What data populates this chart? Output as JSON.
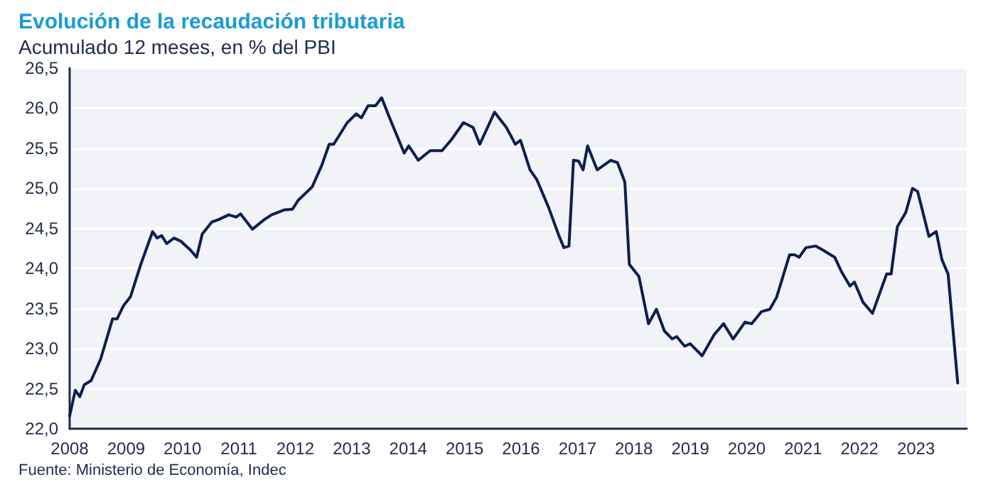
{
  "chart_data": {
    "type": "line",
    "title": "Evolución de la recaudación tributaria",
    "subtitle": "Acumulado 12 meses, en % del PBI",
    "annotations": [
      "Fuente: Ministerio de Economía, Indec"
    ],
    "x": [
      2008.0,
      2008.1,
      2008.18,
      2008.26,
      2008.38,
      2008.55,
      2008.76,
      2008.84,
      2008.95,
      2009.08,
      2009.26,
      2009.47,
      2009.55,
      2009.63,
      2009.72,
      2009.85,
      2009.97,
      2010.14,
      2010.25,
      2010.35,
      2010.52,
      2010.64,
      2010.82,
      2010.95,
      2011.03,
      2011.24,
      2011.45,
      2011.58,
      2011.8,
      2011.95,
      2012.05,
      2012.3,
      2012.47,
      2012.6,
      2012.68,
      2012.92,
      2013.08,
      2013.17,
      2013.29,
      2013.42,
      2013.53,
      2013.67,
      2013.93,
      2014.01,
      2014.18,
      2014.39,
      2014.6,
      2014.77,
      2014.98,
      2015.15,
      2015.27,
      2015.53,
      2015.74,
      2015.9,
      2015.99,
      2016.16,
      2016.28,
      2016.49,
      2016.66,
      2016.76,
      2016.85,
      2016.93,
      2017.02,
      2017.1,
      2017.18,
      2017.35,
      2017.59,
      2017.71,
      2017.84,
      2017.92,
      2018.09,
      2018.26,
      2018.4,
      2018.54,
      2018.68,
      2018.76,
      2018.9,
      2019.0,
      2019.21,
      2019.42,
      2019.59,
      2019.76,
      2019.97,
      2020.09,
      2020.26,
      2020.41,
      2020.53,
      2020.76,
      2020.85,
      2020.93,
      2021.05,
      2021.22,
      2021.35,
      2021.56,
      2021.68,
      2021.83,
      2021.91,
      2022.06,
      2022.23,
      2022.48,
      2022.56,
      2022.67,
      2022.82,
      2022.94,
      2023.03,
      2023.23,
      2023.36,
      2023.46,
      2023.57,
      2023.74
    ],
    "series": [
      {
        "color": "#0d1f4f",
        "values": [
          22.16,
          22.48,
          22.4,
          22.55,
          22.6,
          22.87,
          23.37,
          23.37,
          23.53,
          23.65,
          24.05,
          24.46,
          24.38,
          24.41,
          24.31,
          24.38,
          24.34,
          24.23,
          24.14,
          24.43,
          24.58,
          24.61,
          24.67,
          24.64,
          24.68,
          24.49,
          24.61,
          24.67,
          24.73,
          24.74,
          24.85,
          25.02,
          25.29,
          25.55,
          25.55,
          25.82,
          25.93,
          25.88,
          26.03,
          26.03,
          26.13,
          25.88,
          25.44,
          25.53,
          25.35,
          25.47,
          25.47,
          25.61,
          25.82,
          25.76,
          25.55,
          25.95,
          25.76,
          25.55,
          25.6,
          25.23,
          25.11,
          24.76,
          24.43,
          24.26,
          24.28,
          25.35,
          25.34,
          25.23,
          25.53,
          25.23,
          25.35,
          25.32,
          25.08,
          24.05,
          23.9,
          23.31,
          23.49,
          23.22,
          23.12,
          23.15,
          23.03,
          23.06,
          22.91,
          23.17,
          23.31,
          23.12,
          23.33,
          23.31,
          23.46,
          23.49,
          23.64,
          24.17,
          24.17,
          24.14,
          24.26,
          24.28,
          24.23,
          24.14,
          23.96,
          23.78,
          23.83,
          23.58,
          23.44,
          23.93,
          23.93,
          24.52,
          24.7,
          25.0,
          24.96,
          24.4,
          24.46,
          24.11,
          23.93,
          22.57
        ]
      }
    ],
    "xlim": [
      2008,
      2023.9
    ],
    "xticks": [
      2008,
      2009,
      2010,
      2011,
      2012,
      2013,
      2014,
      2015,
      2016,
      2017,
      2018,
      2019,
      2020,
      2021,
      2022,
      2023
    ],
    "ylim": [
      22,
      26.5
    ],
    "yticks": [
      {
        "value": 22,
        "label": "22,0"
      },
      {
        "value": 22.5,
        "label": "22,5"
      },
      {
        "value": 23,
        "label": "23,0"
      },
      {
        "value": 23.5,
        "label": "23,5"
      },
      {
        "value": 24,
        "label": "24,0"
      },
      {
        "value": 24.5,
        "label": "24,5"
      },
      {
        "value": 25,
        "label": "25,0"
      },
      {
        "value": 25.5,
        "label": "25,5"
      },
      {
        "value": 26,
        "label": "26,0"
      },
      {
        "value": 26.5,
        "label": "26,5"
      }
    ],
    "grid": "y",
    "marker": "none",
    "line_style": "solid"
  }
}
